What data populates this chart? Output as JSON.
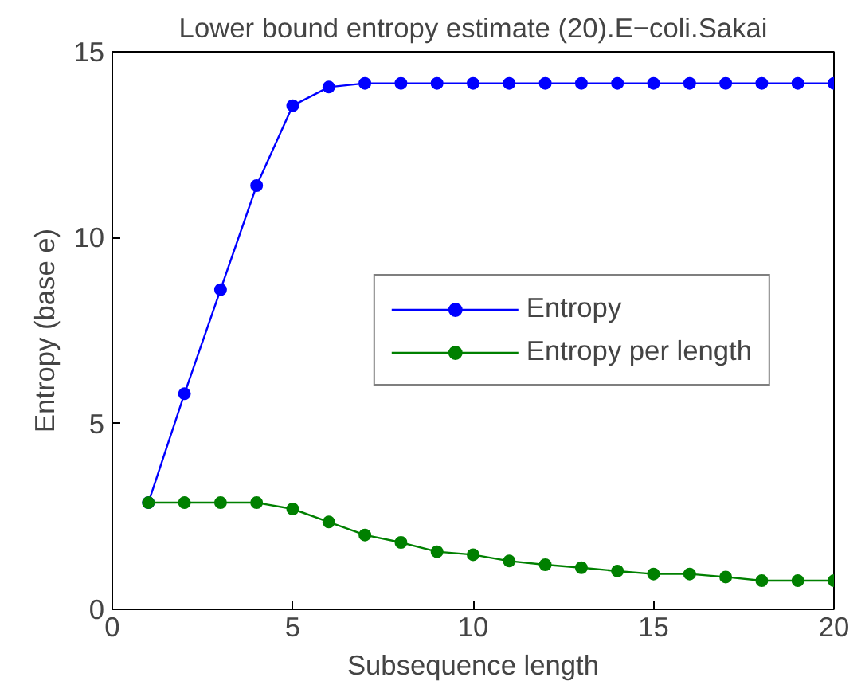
{
  "chart_data": {
    "type": "line",
    "title": "Lower bound entropy estimate (20).E−coli.Sakai",
    "xlabel": "Subsequence length",
    "ylabel": "Entropy (base e)",
    "x": [
      1,
      2,
      3,
      4,
      5,
      6,
      7,
      8,
      9,
      10,
      11,
      12,
      13,
      14,
      15,
      16,
      17,
      18,
      19,
      20
    ],
    "series": [
      {
        "name": "Entropy",
        "color": "#0000ff",
        "values": [
          2.87,
          5.8,
          8.6,
          11.4,
          13.55,
          14.05,
          14.15,
          14.15,
          14.15,
          14.15,
          14.15,
          14.15,
          14.15,
          14.15,
          14.15,
          14.15,
          14.15,
          14.15,
          14.15,
          14.15
        ]
      },
      {
        "name": "Entropy per length",
        "color": "#008000",
        "values": [
          2.87,
          2.87,
          2.87,
          2.87,
          2.7,
          2.35,
          2.0,
          1.8,
          1.55,
          1.47,
          1.3,
          1.2,
          1.12,
          1.03,
          0.95,
          0.95,
          0.87,
          0.77,
          0.77,
          0.77
        ]
      }
    ],
    "xlim": [
      0,
      20
    ],
    "ylim": [
      0,
      15
    ],
    "xticks": [
      0,
      5,
      10,
      15,
      20
    ],
    "yticks": [
      0,
      5,
      10,
      15
    ],
    "grid": false,
    "legend": "right",
    "marker": "circle",
    "line_style": "solid"
  }
}
